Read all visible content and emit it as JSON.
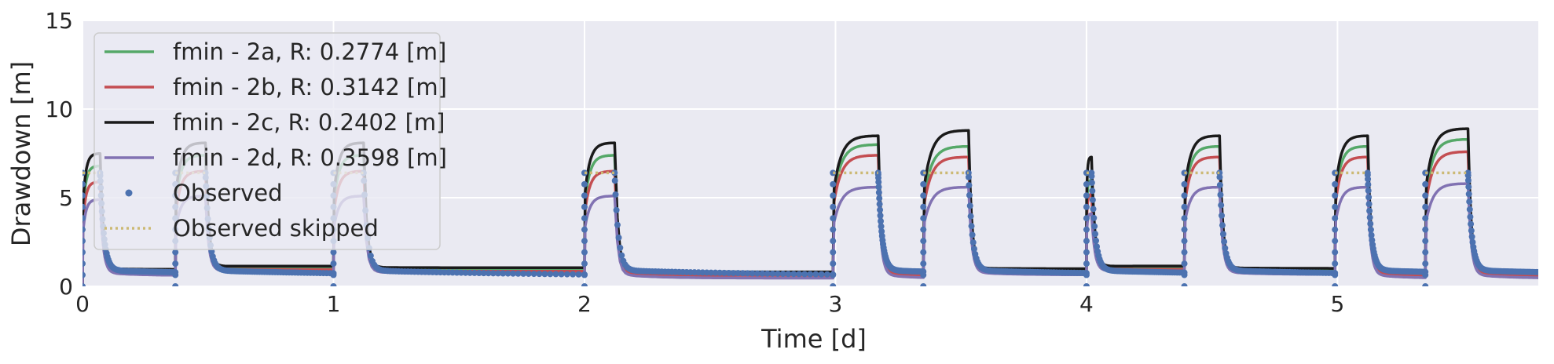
{
  "chart_data": {
    "type": "line",
    "xlabel": "Time [d]",
    "ylabel": "Drawdown [m]",
    "xlim": [
      0,
      5.8
    ],
    "ylim": [
      0,
      15
    ],
    "x_ticks": [
      0,
      1,
      2,
      3,
      4,
      5
    ],
    "y_ticks": [
      0,
      5,
      10,
      15
    ],
    "grid": true,
    "legend_position": "top-left",
    "background_color": "#EAEAF2",
    "pumping_periods": [
      {
        "start": 0.0,
        "end": 0.07,
        "observed_peak": 6.4
      },
      {
        "start": 0.37,
        "end": 0.49,
        "observed_peak": 6.4
      },
      {
        "start": 1.0,
        "end": 1.12,
        "observed_peak": 6.4
      },
      {
        "start": 2.0,
        "end": 2.12,
        "observed_peak": 6.4
      },
      {
        "start": 2.99,
        "end": 3.17,
        "observed_peak": 6.4
      },
      {
        "start": 3.35,
        "end": 3.53,
        "observed_peak": 6.4
      },
      {
        "start": 4.0,
        "end": 4.02,
        "observed_peak": 6.4
      },
      {
        "start": 4.39,
        "end": 4.53,
        "observed_peak": 6.4
      },
      {
        "start": 4.99,
        "end": 5.12,
        "observed_peak": 6.4
      },
      {
        "start": 5.35,
        "end": 5.52,
        "observed_peak": 6.4
      }
    ],
    "series": [
      {
        "name": "fmin - 2a, R: 0.2774 [m]",
        "color": "#55A868",
        "style": "solid",
        "peaks": [
          6.8,
          7.4,
          7.4,
          7.4,
          8.0,
          7.9,
          6.0,
          7.9,
          7.9,
          8.3
        ]
      },
      {
        "name": "fmin - 2b, R: 0.3142 [m]",
        "color": "#C44E52",
        "style": "solid",
        "peaks": [
          5.9,
          6.5,
          6.5,
          6.5,
          7.4,
          7.3,
          5.2,
          7.3,
          7.3,
          7.6
        ]
      },
      {
        "name": "fmin - 2c, R: 0.2402 [m]",
        "color": "#1A1A1A",
        "style": "solid",
        "peaks": [
          7.5,
          8.1,
          8.1,
          8.1,
          8.5,
          8.8,
          7.3,
          8.5,
          8.5,
          8.9
        ]
      },
      {
        "name": "fmin - 2d, R: 0.3598 [m]",
        "color": "#8172B2",
        "style": "solid",
        "peaks": [
          4.9,
          5.1,
          5.1,
          5.1,
          5.6,
          5.6,
          4.1,
          5.6,
          5.6,
          5.8
        ]
      },
      {
        "name": "Observed",
        "color": "#4C72B0",
        "style": "markers"
      },
      {
        "name": "Observed skipped",
        "color": "#CCB974",
        "style": "dotted",
        "value": 6.4
      }
    ]
  }
}
